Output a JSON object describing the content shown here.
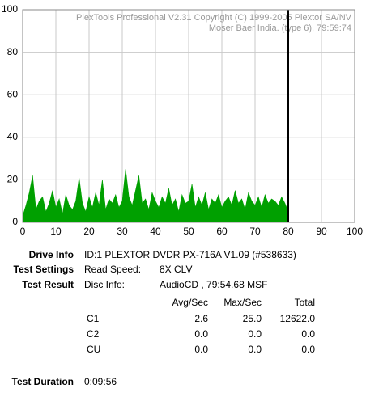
{
  "chart_data": {
    "type": "area",
    "watermark": [
      "PlexTools Professional V2.31 Copyright (C) 1999-2005 Plextor SA/NV",
      "Moser Baer India. (type 6), 79:59:74"
    ],
    "x": [
      0,
      1,
      2,
      3,
      4,
      5,
      6,
      7,
      8,
      9,
      10,
      11,
      12,
      13,
      14,
      15,
      16,
      17,
      18,
      19,
      20,
      21,
      22,
      23,
      24,
      25,
      26,
      27,
      28,
      29,
      30,
      31,
      32,
      33,
      34,
      35,
      36,
      37,
      38,
      39,
      40,
      41,
      42,
      43,
      44,
      45,
      46,
      47,
      48,
      49,
      50,
      51,
      52,
      53,
      54,
      55,
      56,
      57,
      58,
      59,
      60,
      61,
      62,
      63,
      64,
      65,
      66,
      67,
      68,
      69,
      70,
      71,
      72,
      73,
      74,
      75,
      76,
      77,
      78,
      79,
      80
    ],
    "series": [
      {
        "color": "#00a000",
        "values": [
          3,
          8,
          14,
          22,
          6,
          10,
          12,
          5,
          9,
          15,
          7,
          11,
          4,
          13,
          8,
          6,
          10,
          21,
          9,
          5,
          12,
          7,
          14,
          8,
          20,
          6,
          11,
          9,
          13,
          7,
          10,
          25,
          12,
          8,
          15,
          22,
          9,
          11,
          6,
          14,
          10,
          7,
          12,
          9,
          16,
          8,
          11,
          5,
          13,
          9,
          10,
          18,
          7,
          12,
          8,
          14,
          6,
          11,
          9,
          13,
          7,
          10,
          12,
          8,
          15,
          9,
          11,
          6,
          14,
          10,
          8,
          12,
          7,
          13,
          9,
          11,
          10,
          8,
          12,
          9,
          5
        ]
      }
    ],
    "end_marker": 80,
    "xlim": [
      0,
      100
    ],
    "xticks": [
      0,
      10,
      20,
      30,
      40,
      50,
      60,
      70,
      80,
      90,
      100
    ],
    "ylim": [
      0,
      100
    ],
    "yticks": [
      0,
      20,
      40,
      60,
      80,
      100
    ],
    "grid": true
  },
  "report": {
    "drive_info": {
      "label": "Drive Info",
      "value": "ID:1 PLEXTOR DVDR PX-716A V1.09 (#538633)"
    },
    "test_settings": {
      "label": "Test Settings",
      "key": "Read Speed:",
      "value": "8X CLV"
    },
    "test_result": {
      "label": "Test Result",
      "key": "Disc Info:",
      "value": "AudioCD , 79:54.68 MSF"
    },
    "table": {
      "header": [
        "Avg/Sec",
        "Max/Sec",
        "Total"
      ],
      "rows": [
        [
          "C1",
          "2.6",
          "25.0",
          "12622.0"
        ],
        [
          "C2",
          "0.0",
          "0.0",
          "0.0"
        ],
        [
          "CU",
          "0.0",
          "0.0",
          "0.0"
        ]
      ]
    },
    "test_duration": {
      "label": "Test Duration",
      "value": "0:09:56"
    }
  }
}
